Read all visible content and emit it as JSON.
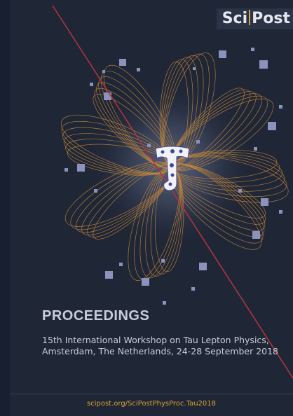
{
  "logo": {
    "left": "Sci",
    "right": "Post"
  },
  "title": "PROCEEDINGS",
  "subtitle": [
    "15th International Workshop on Tau Lepton Physics,",
    "Amsterdam, The Netherlands, 24-28 September 2018"
  ],
  "footer": "scipost.org/SciPostPhysProc.Tau2018"
}
